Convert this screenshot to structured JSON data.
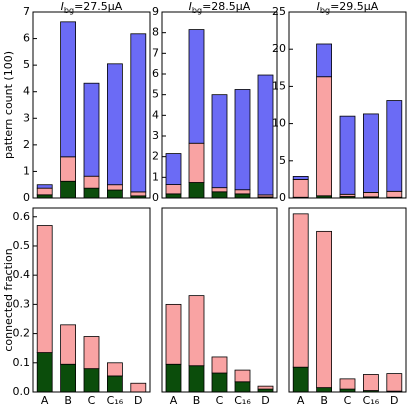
{
  "chart_data": [
    {
      "type": "bar",
      "title": "I",
      "title_subscript": "bg",
      "title_value": "=27.5μA",
      "ylabel": "pattern count (100)",
      "ylim": [
        0,
        7
      ],
      "yticks": [
        0,
        1,
        2,
        3,
        4,
        5,
        6,
        7
      ],
      "series": [
        {
          "color": "#0b4d0b",
          "values": [
            0.12,
            0.63,
            0.37,
            0.3,
            0.08
          ]
        },
        {
          "color": "#f9a3a3",
          "values": [
            0.25,
            0.92,
            0.45,
            0.2,
            0.15
          ]
        },
        {
          "color": "#6b6bf5",
          "values": [
            0.13,
            5.08,
            3.5,
            4.55,
            5.95
          ]
        }
      ]
    },
    {
      "type": "bar",
      "title": "I",
      "title_subscript": "bg",
      "title_value": "=28.5μA",
      "ylim": [
        0,
        9
      ],
      "yticks": [
        0,
        1,
        2,
        3,
        4,
        5,
        6,
        7,
        8,
        9
      ],
      "series": [
        {
          "color": "#0b4d0b",
          "values": [
            0.2,
            0.75,
            0.3,
            0.2,
            0.05
          ]
        },
        {
          "color": "#f9a3a3",
          "values": [
            0.45,
            1.9,
            0.2,
            0.2,
            0.1
          ]
        },
        {
          "color": "#6b6bf5",
          "values": [
            1.5,
            5.5,
            4.5,
            4.85,
            5.8
          ]
        }
      ]
    },
    {
      "type": "bar",
      "title": "I",
      "title_subscript": "bg",
      "title_value": "=29.5μA",
      "ylim": [
        0,
        25
      ],
      "yticks": [
        0,
        5,
        10,
        15,
        20,
        25
      ],
      "series": [
        {
          "color": "#0b4d0b",
          "values": [
            0.1,
            0.3,
            0.2,
            0.15,
            0.1
          ]
        },
        {
          "color": "#f9a3a3",
          "values": [
            2.4,
            16,
            0.3,
            0.6,
            0.8
          ]
        },
        {
          "color": "#6b6bf5",
          "values": [
            0.4,
            4.4,
            10.5,
            10.55,
            12.2
          ]
        }
      ]
    },
    {
      "type": "bar",
      "ylabel": "connected fraction",
      "categories": [
        "A",
        "B",
        "C",
        "C₁₆",
        "D"
      ],
      "ylim": [
        0,
        0.63
      ],
      "yticks": [
        {
          "value": 0,
          "label": "0.0"
        },
        0.1,
        0.2,
        0.3,
        0.4,
        0.5,
        0.6
      ],
      "series": [
        {
          "color": "#0b4d0b",
          "values": [
            0.135,
            0.095,
            0.08,
            0.055,
            0
          ]
        },
        {
          "color": "#f9a3a3",
          "values": [
            0.435,
            0.135,
            0.11,
            0.045,
            0.03
          ]
        }
      ]
    },
    {
      "type": "bar",
      "categories": [
        "A",
        "B",
        "C",
        "C₁₆",
        "D"
      ],
      "ylim": [
        0,
        0.63
      ],
      "series": [
        {
          "color": "#0b4d0b",
          "values": [
            0.095,
            0.09,
            0.065,
            0.035,
            0.01
          ]
        },
        {
          "color": "#f9a3a3",
          "values": [
            0.205,
            0.24,
            0.055,
            0.04,
            0.01
          ]
        }
      ]
    },
    {
      "type": "bar",
      "categories": [
        "A",
        "B",
        "C",
        "C₁₆",
        "D"
      ],
      "ylim": [
        0,
        0.63
      ],
      "series": [
        {
          "color": "#0b4d0b",
          "values": [
            0.085,
            0.015,
            0.01,
            0.005,
            0.003
          ]
        },
        {
          "color": "#f9a3a3",
          "values": [
            0.525,
            0.535,
            0.035,
            0.055,
            0.06
          ]
        }
      ]
    }
  ]
}
